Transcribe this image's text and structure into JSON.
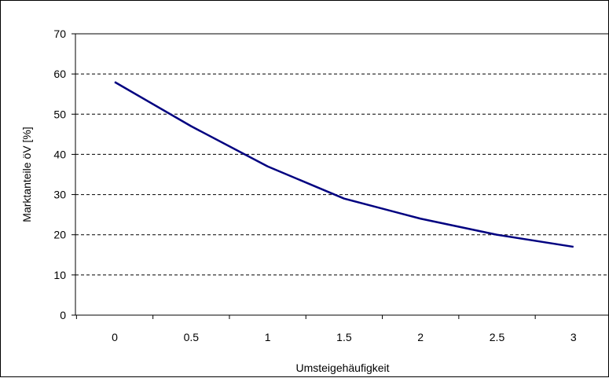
{
  "chart_data": {
    "type": "line",
    "title": "",
    "xlabel": "Umsteigehäufigkeit",
    "ylabel": "Marktanteile öV [%]",
    "categories": [
      "0",
      "0.5",
      "1",
      "1.5",
      "2",
      "2.5",
      "3"
    ],
    "x": [
      0,
      0.5,
      1,
      1.5,
      2,
      2.5,
      3
    ],
    "series": [
      {
        "values": [
          58,
          47,
          37,
          29,
          24,
          20,
          17
        ],
        "color": "#000080"
      }
    ],
    "ylim": [
      0,
      70
    ],
    "yticks": [
      0,
      10,
      20,
      30,
      40,
      50,
      60,
      70
    ],
    "grid": "horizontal dashed",
    "legend": "none"
  }
}
